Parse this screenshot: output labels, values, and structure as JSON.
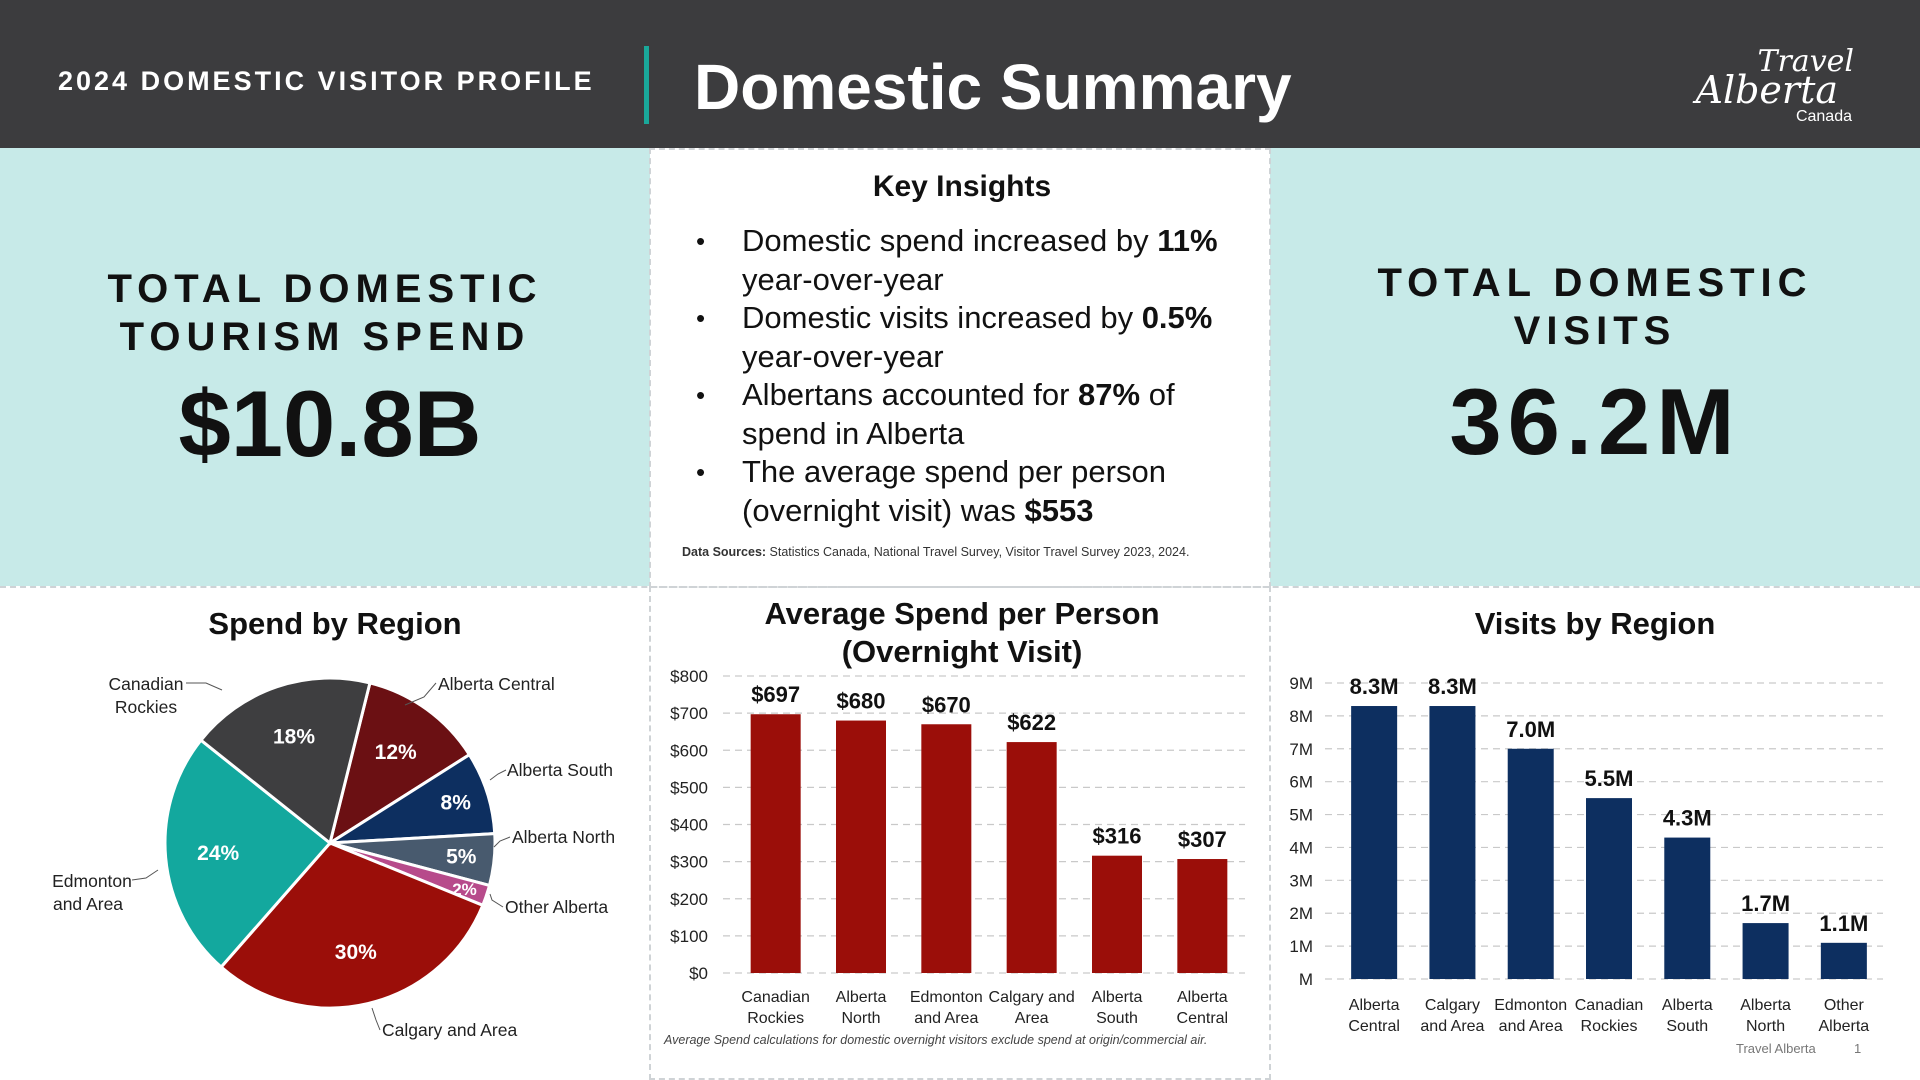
{
  "header": {
    "subtitle": "2024 DOMESTIC VISITOR PROFILE",
    "title": "Domestic Summary",
    "logo": {
      "line1": "Travel",
      "line2": "Alberta",
      "line3": "Canada"
    }
  },
  "colors": {
    "header_bg": "#3c3c3e",
    "accent": "#1aa89a",
    "mint": "#c7eae8",
    "red": "#9b0e09",
    "navy": "#0d2f60"
  },
  "spend_kpi": {
    "label_line1": "TOTAL DOMESTIC",
    "label_line2": "TOURISM SPEND",
    "value": "$10.8B"
  },
  "visits_kpi": {
    "label_line1": "TOTAL DOMESTIC",
    "label_line2": "VISITS",
    "value": "36.2M"
  },
  "insights": {
    "title": "Key Insights",
    "items": [
      {
        "pre": "Domestic spend increased by ",
        "bold": "11%",
        "post": " year-over-year"
      },
      {
        "pre": "Domestic visits increased by ",
        "bold": "0.5%",
        "post": " year-over-year"
      },
      {
        "pre": "Albertans accounted for ",
        "bold": "87%",
        "post": " of spend in Alberta"
      },
      {
        "pre": "The average spend per person (overnight visit) was ",
        "bold": "$553",
        "post": ""
      }
    ],
    "sources_label": "Data Sources:",
    "sources_text": " Statistics Canada, National Travel Survey, Visitor Travel Survey 2023, 2024."
  },
  "footnote": "Average Spend calculations for domestic overnight visitors exclude spend at origin/commercial air.",
  "footer": {
    "credit": "Travel Alberta",
    "page": "1"
  },
  "chart_data": [
    {
      "type": "pie",
      "title": "Spend by Region",
      "categories": [
        "Alberta Central",
        "Alberta South",
        "Alberta North",
        "Other Alberta",
        "Calgary and Area",
        "Edmonton and Area",
        "Canadian Rockies"
      ],
      "values": [
        12,
        8,
        5,
        2,
        30,
        24,
        18
      ],
      "value_labels": [
        "12%",
        "8%",
        "5%",
        "2%",
        "30%",
        "24%",
        "18%"
      ],
      "colors": [
        "#6b1013",
        "#0d2f60",
        "#485a6e",
        "#b74b8b",
        "#9b0e09",
        "#13a89e",
        "#3e3e40"
      ],
      "legend_labels": [
        [
          "Alberta Central"
        ],
        [
          "Alberta South"
        ],
        [
          "Alberta North"
        ],
        [
          "Other Alberta"
        ],
        [
          "Calgary and Area"
        ],
        [
          "Edmonton",
          "and Area"
        ],
        [
          "Canadian",
          "Rockies"
        ]
      ]
    },
    {
      "type": "bar",
      "title": "Average Spend per Person (Overnight Visit)",
      "title_lines": [
        "Average Spend per Person",
        "(Overnight Visit)"
      ],
      "categories": [
        "Canadian Rockies",
        "Alberta North",
        "Edmonton and Area",
        "Calgary and Area",
        "Alberta South",
        "Alberta Central"
      ],
      "category_lines": [
        [
          "Canadian",
          "Rockies"
        ],
        [
          "Alberta",
          "North"
        ],
        [
          "Edmonton",
          "and Area"
        ],
        [
          "Calgary and",
          "Area"
        ],
        [
          "Alberta",
          "South"
        ],
        [
          "Alberta",
          "Central"
        ]
      ],
      "values": [
        697,
        680,
        670,
        622,
        316,
        307
      ],
      "value_labels": [
        "$697",
        "$680",
        "$670",
        "$622",
        "$316",
        "$307"
      ],
      "ylim": [
        0,
        800
      ],
      "yticks": [
        "$0",
        "$100",
        "$200",
        "$300",
        "$400",
        "$500",
        "$600",
        "$700",
        "$800"
      ],
      "grid": true
    },
    {
      "type": "bar",
      "title": "Visits by Region",
      "categories": [
        "Alberta Central",
        "Calgary and Area",
        "Edmonton and Area",
        "Canadian Rockies",
        "Alberta South",
        "Alberta North",
        "Other Alberta"
      ],
      "category_lines": [
        [
          "Alberta",
          "Central"
        ],
        [
          "Calgary",
          "and Area"
        ],
        [
          "Edmonton",
          "and Area"
        ],
        [
          "Canadian",
          "Rockies"
        ],
        [
          "Alberta",
          "South"
        ],
        [
          "Alberta",
          "North"
        ],
        [
          "Other",
          "Alberta"
        ]
      ],
      "values": [
        8.3,
        8.3,
        7.0,
        5.5,
        4.3,
        1.7,
        1.1
      ],
      "value_labels": [
        "8.3M",
        "8.3M",
        "7.0M",
        "5.5M",
        "4.3M",
        "1.7M",
        "1.1M"
      ],
      "ylim": [
        0,
        9
      ],
      "yticks": [
        "M",
        "1M",
        "2M",
        "3M",
        "4M",
        "5M",
        "6M",
        "7M",
        "8M",
        "9M"
      ],
      "grid": true
    }
  ]
}
